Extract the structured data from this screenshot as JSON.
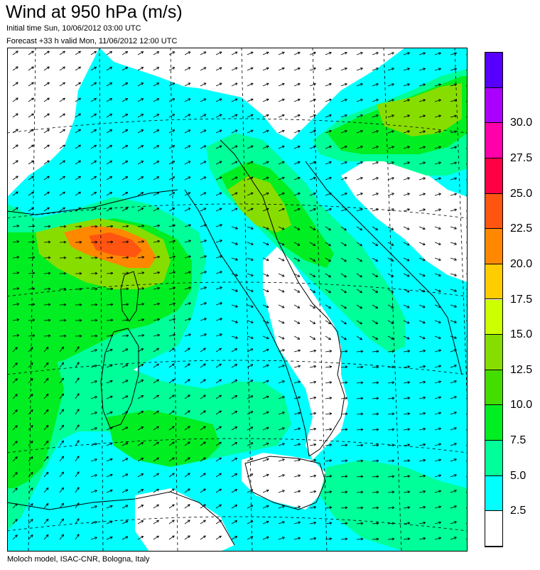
{
  "header": {
    "title": "Wind at 950 hPa (m/s)",
    "initial_time": "Initial time  Sun, 10/06/2012 03:00 UTC",
    "forecast": "Forecast +33 h valid  Mon, 11/06/2012 12:00 UTC"
  },
  "footer": {
    "credit": "Moloch model, ISAC-CNR, Bologna, Italy"
  },
  "legend": {
    "colors": [
      "#ffffff",
      "#00ffff",
      "#00ff99",
      "#00ee22",
      "#44dd00",
      "#88dd00",
      "#ccff00",
      "#ffcc00",
      "#ff8800",
      "#ff5511",
      "#ff0044",
      "#ff00aa",
      "#aa00ff",
      "#5500ff"
    ],
    "labels": [
      "2.5",
      "5.0",
      "7.5",
      "10.0",
      "12.5",
      "15.0",
      "17.5",
      "20.0",
      "22.5",
      "25.0",
      "27.5",
      "30.0"
    ]
  },
  "map": {
    "background_color": "#ffffff",
    "arrow_color": "#000000",
    "coastline_color": "#000000",
    "grid_color": "#000000"
  }
}
